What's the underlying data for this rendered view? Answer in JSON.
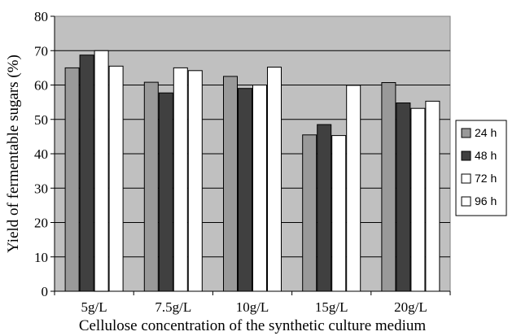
{
  "chart_data": {
    "type": "bar",
    "title": "",
    "xlabel": "Cellulose concentration of the synthetic culture medium",
    "ylabel": "Yield of fermentable sugars (%)",
    "ylim": [
      0,
      80
    ],
    "yticks": [
      "0",
      "10",
      "20",
      "30",
      "40",
      "50",
      "60",
      "70",
      "80"
    ],
    "grid": true,
    "legend_position": "right",
    "categories": [
      "5g/L",
      "7.5g/L",
      "10g/L",
      "15g/L",
      "20g/L"
    ],
    "series": [
      {
        "name": "24 h",
        "color": "#999999",
        "values": [
          65,
          60.8,
          62.5,
          45.5,
          60.7
        ]
      },
      {
        "name": "48 h",
        "color": "#404040",
        "values": [
          68.7,
          57.7,
          59,
          48.5,
          54.8
        ]
      },
      {
        "name": "72 h",
        "color": "#ffffff",
        "values": [
          70,
          65,
          60,
          45.3,
          53.2
        ]
      },
      {
        "name": "96 h",
        "color": "#ffffff",
        "values": [
          65.5,
          64.2,
          65.2,
          59.9,
          55.3
        ]
      }
    ],
    "plot_background": "#c0c0c0"
  }
}
